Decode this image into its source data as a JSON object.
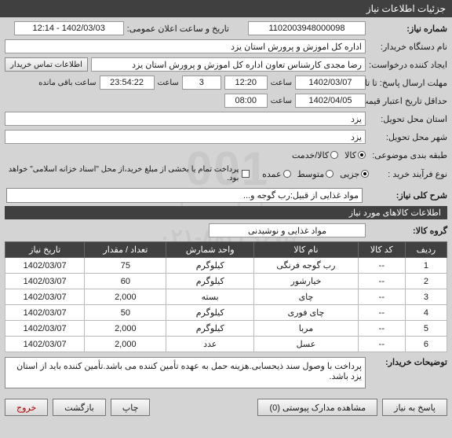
{
  "window_title": "جزئیات اطلاعات نیاز",
  "watermark": {
    "line1": "001",
    "line2": "ستاد پارس مدار",
    "line3": "۰۲۱-۸۸۳۴۹۶۷۵",
    "line4": "ParsMadar.ir"
  },
  "labels": {
    "need_no": "شماره نیاز:",
    "announce_dt": "تاریخ و ساعت اعلان عمومی:",
    "buyer_org": "نام دستگاه خریدار:",
    "requester": "ایجاد کننده درخواست:",
    "contact_btn": "اطلاعات تماس خریدار",
    "deadline": "مهلت ارسال پاسخ: تا تاریخ:",
    "time_lbl": "ساعت",
    "days_left_suffix": "ساعت باقی مانده",
    "validity": "حداقل تاریخ اعتبار قیمت: تا تاریخ:",
    "province": "استان محل تحویل:",
    "city": "شهر محل تحویل:",
    "categorization": "طبقه بندی موضوعی:",
    "purchase_process": "نوع فرآیند خرید :",
    "payment_note": "پرداخت تمام یا بخشی از مبلغ خرید،از محل \"اسناد خزانه اسلامی\" خواهد بود.",
    "brief_title": "شرح کلی نیاز:",
    "items_section": "اطلاعات کالاهای مورد نیاز",
    "group": "گروه کالا:",
    "buyer_notes": "توضیحات خریدار:"
  },
  "radios": {
    "cat": {
      "goods": "کالا",
      "service": "کالا/خدمت"
    },
    "process": {
      "minor": "جزیی",
      "medium": "متوسط",
      "major": "عمده"
    }
  },
  "values": {
    "need_no": "1102003948000098",
    "announce_dt": "1402/03/03 - 12:14",
    "buyer_org": "اداره کل اموزش و پرورش استان یزد",
    "requester": "رضا مجدی کارشناس تعاون اداره کل اموزش و پرورش استان یزد",
    "deadline_date": "1402/03/07",
    "deadline_time": "12:20",
    "days_left": "3",
    "countdown": "23:54:22",
    "validity_date": "1402/04/05",
    "validity_time": "08:00",
    "province": "یزد",
    "city": "یزد",
    "brief": "مواد غذایی از قبیل:رب گوجه و...",
    "group": "مواد غذایی و نوشیدنی",
    "buyer_notes": "پرداخت با وصول سند ذیحسابی.هزینه حمل به عهده تأمین کننده می باشد.تأمین کننده باید از استان یزد باشد."
  },
  "table": {
    "headers": [
      "ردیف",
      "کد کالا",
      "نام کالا",
      "واحد شمارش",
      "تعداد / مقدار",
      "تاریخ نیاز"
    ],
    "rows": [
      [
        "1",
        "--",
        "رب گوجه فرنگی",
        "کیلوگرم",
        "75",
        "1402/03/07"
      ],
      [
        "2",
        "--",
        "خیارشور",
        "کیلوگرم",
        "60",
        "1402/03/07"
      ],
      [
        "3",
        "--",
        "چای",
        "بسته",
        "2,000",
        "1402/03/07"
      ],
      [
        "4",
        "--",
        "چای فوری",
        "کیلوگرم",
        "50",
        "1402/03/07"
      ],
      [
        "5",
        "--",
        "مربا",
        "کیلوگرم",
        "2,000",
        "1402/03/07"
      ],
      [
        "6",
        "--",
        "عسل",
        "عدد",
        "2,000",
        "1402/03/07"
      ]
    ]
  },
  "footer": {
    "respond": "پاسخ به نیاز",
    "attachments": "مشاهده مدارک پیوستی (0)",
    "print": "چاپ",
    "back": "بازگشت",
    "exit": "خروج"
  }
}
